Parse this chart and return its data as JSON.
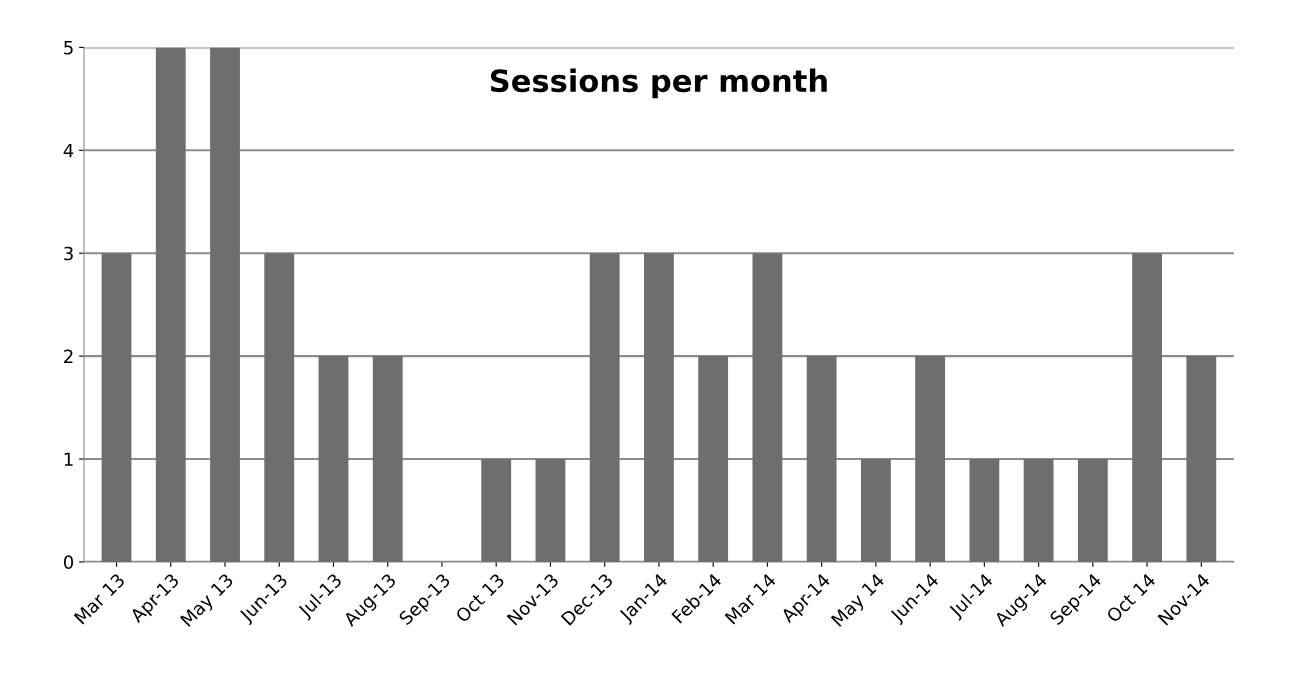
{
  "chart_data": {
    "type": "bar",
    "title": "Sessions per month",
    "categories": [
      "Mar 13",
      "Apr-13",
      "May 13",
      "Jun-13",
      "Jul-13",
      "Aug-13",
      "Sep-13",
      "Oct 13",
      "Nov-13",
      "Dec-13",
      "Jan-14",
      "Feb-14",
      "Mar 14",
      "Apr-14",
      "May 14",
      "Jun-14",
      "Jul-14",
      "Aug-14",
      "Sep-14",
      "Oct 14",
      "Nov-14"
    ],
    "values": [
      3,
      5,
      5,
      3,
      2,
      2,
      0,
      1,
      1,
      3,
      3,
      2,
      3,
      2,
      1,
      2,
      1,
      1,
      1,
      3,
      2
    ],
    "color": "#6e6e6e",
    "ylim": [
      0,
      5
    ],
    "yticks": [
      0,
      1,
      2,
      3,
      4,
      5
    ],
    "grid": "y"
  }
}
